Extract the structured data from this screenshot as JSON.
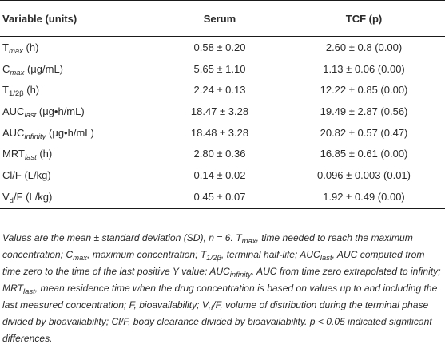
{
  "table": {
    "headers": [
      "Variable (units)",
      "Serum",
      "TCF (p)"
    ],
    "rows": [
      {
        "base": "T",
        "sub": "max",
        "unit": " (h)",
        "serum": "0.58 ± 0.20",
        "tcf": "2.60 ± 0.8 (0.00)"
      },
      {
        "base": "C",
        "sub": "max",
        "unit": " (μg/mL)",
        "serum": "5.65 ± 1.10",
        "tcf": "1.13 ± 0.06 (0.00)"
      },
      {
        "base": "T",
        "sub": "1/2β",
        "unit": " (h)",
        "serum": "2.24 ± 0.13",
        "tcf": "12.22 ± 0.85 (0.00)"
      },
      {
        "base": "AUC",
        "sub": "last",
        "unit": " (μg•h/mL)",
        "serum": "18.47 ± 3.28",
        "tcf": "19.49 ± 2.87 (0.56)"
      },
      {
        "base": "AUC",
        "sub": "infinity",
        "unit": " (μg•h/mL)",
        "serum": "18.48 ± 3.28",
        "tcf": "20.82 ± 0.57 (0.47)"
      },
      {
        "base": "MRT",
        "sub": "last",
        "unit": " (h)",
        "serum": "2.80 ± 0.36",
        "tcf": "16.85 ± 0.61 (0.00)"
      },
      {
        "base": "Cl/F",
        "sub": "",
        "unit": " (L/kg)",
        "serum": "0.14 ± 0.02",
        "tcf": "0.096 ± 0.003 (0.01)"
      },
      {
        "base": "V",
        "sub": "d",
        "unit": "/F (L/kg)",
        "serum": "0.45 ± 0.07",
        "tcf": "1.92 ± 0.49 (0.00)"
      }
    ]
  },
  "footnote": {
    "p1": "Values are the mean ± standard deviation (SD), n = 6. T",
    "s1": "max",
    "p2": ", time needed to reach the maximum concentration; C",
    "s2": "max",
    "p3": ", maximum concentration; T",
    "s3": "1/2β",
    "p4": ", terminal half-life; AUC",
    "s4": "last",
    "p5": ", AUC computed from time zero to the time of the last positive Y value; AUC",
    "s5": "infinity",
    "p6": ", AUC from time zero extrapolated to infinity; MRT",
    "s6": "last",
    "p7": ", mean residence time when the drug concentration is based on values up to and including the last measured concentration; F, bioavailability; V",
    "s7": "d",
    "p8": "/F, volume of distribution during the terminal phase divided by bioavailability; Cl/F, body clearance divided by bioavailability. p < 0.05 indicated significant differences."
  }
}
